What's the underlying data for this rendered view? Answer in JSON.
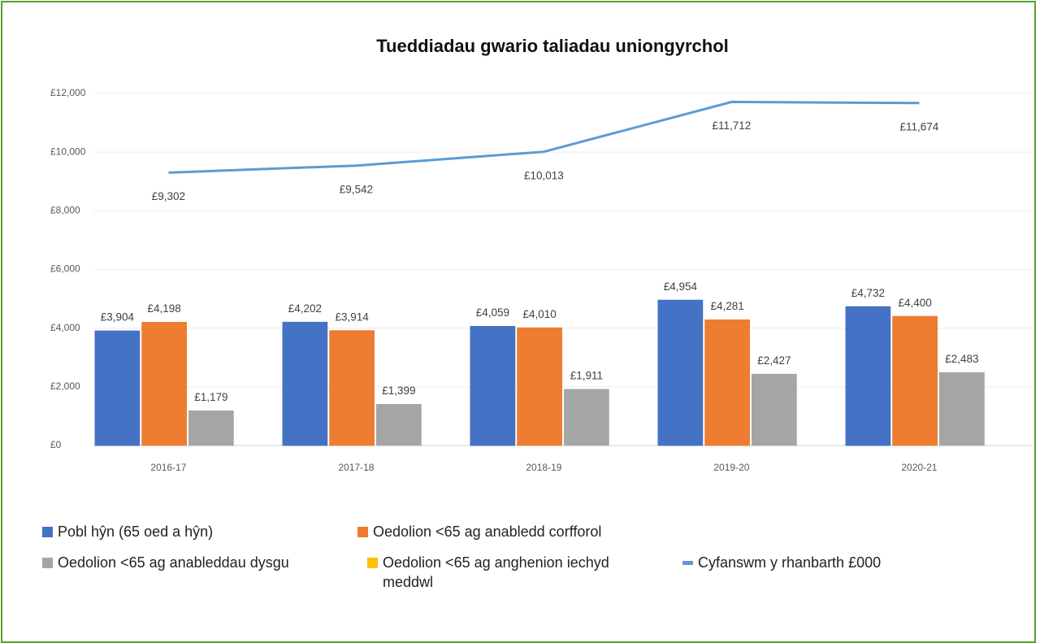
{
  "chart_data": {
    "type": "bar",
    "title": "Tueddiadau gwario taliadau uniongyrchol",
    "categories": [
      "2016-17",
      "2017-18",
      "2018-19",
      "2019-20",
      "2020-21"
    ],
    "ylim": [
      0,
      12000
    ],
    "yticks": [
      {
        "value": 0,
        "label": "£0"
      },
      {
        "value": 2000,
        "label": "£2,000"
      },
      {
        "value": 4000,
        "label": "£4,000"
      },
      {
        "value": 6000,
        "label": "£6,000"
      },
      {
        "value": 8000,
        "label": "£8,000"
      },
      {
        "value": 10000,
        "label": "£10,000"
      },
      {
        "value": 12000,
        "label": "£12,000"
      }
    ],
    "grid": true,
    "series": [
      {
        "name": "Pobl hŷn (65 oed a hŷn)",
        "color": "#4472c4",
        "values": [
          3904,
          4202,
          4059,
          4954,
          4732
        ],
        "value_labels": [
          "£3,904",
          "£4,202",
          "£4,059",
          "£4,954",
          "£4,732"
        ]
      },
      {
        "name": "Oedolion <65 ag anabledd corfforol",
        "color": "#ed7d31",
        "values": [
          4198,
          3914,
          4010,
          4281,
          4400
        ],
        "value_labels": [
          "£4,198",
          "£3,914",
          "£4,010",
          "£4,281",
          "£4,400"
        ]
      },
      {
        "name": "Oedolion <65 ag anableddau dysgu",
        "color": "#a5a5a5",
        "values": [
          1179,
          1399,
          1911,
          2427,
          2483
        ],
        "value_labels": [
          "£1,179",
          "£1,399",
          "£1,911",
          "£2,427",
          "£2,483"
        ]
      },
      {
        "name": "Oedolion <65 ag anghenion iechyd meddwl",
        "color": "#ffc000",
        "values": [
          0,
          0,
          0,
          0,
          0
        ]
      },
      {
        "name": "Cyfanswm y rhanbarth £000",
        "type": "line",
        "color": "#5b9bd5",
        "values": [
          9302,
          9542,
          10013,
          11712,
          11674
        ],
        "value_labels": [
          "£9,302",
          "£9,542",
          "£10,013",
          "£11,712",
          "£11,674"
        ]
      }
    ]
  }
}
